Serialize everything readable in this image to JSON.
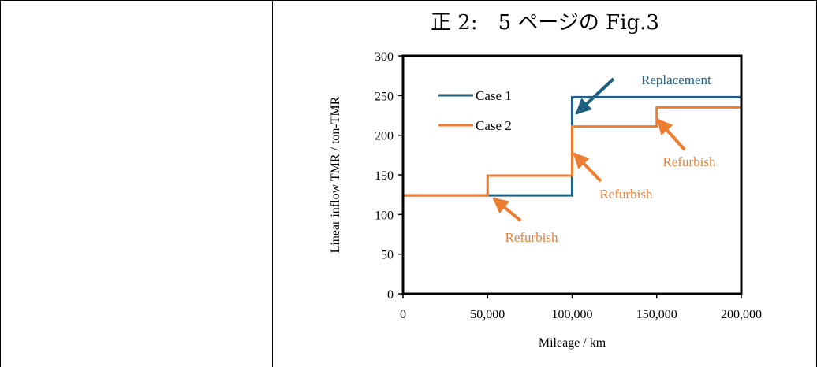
{
  "heading": "正 2:　5 ページの Fig.3",
  "chart_data": {
    "type": "line",
    "xlabel": "Mileage / km",
    "ylabel": "Linear inflow TMR / ton-TMR",
    "xlim": [
      0,
      200000
    ],
    "ylim": [
      0,
      300
    ],
    "x_ticks": [
      0,
      50000,
      100000,
      150000,
      200000
    ],
    "x_tick_labels": [
      "0",
      "50,000",
      "100,000",
      "150,000",
      "200,000"
    ],
    "y_ticks": [
      0,
      50,
      100,
      150,
      200,
      250,
      300
    ],
    "y_tick_labels": [
      "0",
      "50",
      "100",
      "150",
      "200",
      "250",
      "300"
    ],
    "grid": false,
    "legend": "top-left",
    "series": [
      {
        "name": "Case 1",
        "color": "#1f5f80",
        "x": [
          0,
          100000,
          100000,
          200000
        ],
        "y": [
          124,
          124,
          248,
          248
        ]
      },
      {
        "name": "Case 2",
        "color": "#ed7d31",
        "x": [
          0,
          50000,
          50000,
          100000,
          100000,
          150000,
          150000,
          200000
        ],
        "y": [
          124,
          124,
          149,
          149,
          211,
          211,
          235,
          235
        ]
      }
    ],
    "annotations": [
      {
        "text": "Replacement",
        "color": "#1f5f80",
        "x": 100000,
        "y": 225
      },
      {
        "text": "Refurbish",
        "color": "#ed7d31",
        "x": 52000,
        "y": 120
      },
      {
        "text": "Refurbish",
        "color": "#ed7d31",
        "x": 102000,
        "y": 200
      },
      {
        "text": "Refurbish",
        "color": "#ed7d31",
        "x": 152000,
        "y": 228
      }
    ]
  }
}
